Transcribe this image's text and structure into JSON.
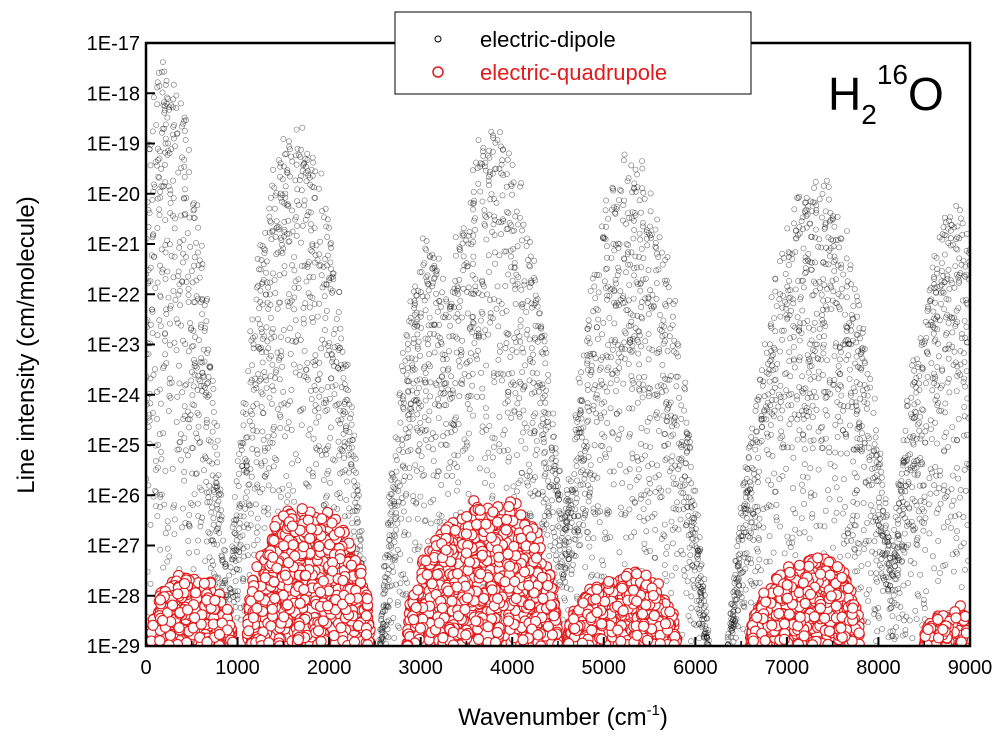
{
  "chart_data": {
    "type": "scatter",
    "title": "",
    "molecule_label": {
      "main": "H",
      "sub": "2",
      "sup": "16",
      "tail": "O"
    },
    "xlabel": {
      "text": "Wavenumber (cm",
      "sup": "-1",
      "close": ")"
    },
    "ylabel": "Line intensity (cm/molecule)",
    "xlim": [
      0,
      9000
    ],
    "ylim": [
      1e-29,
      1e-17
    ],
    "yscale": "log",
    "grid": false,
    "legend_position": "top-center",
    "x_ticks": [
      "0",
      "1000",
      "2000",
      "3000",
      "4000",
      "5000",
      "6000",
      "7000",
      "8000",
      "9000"
    ],
    "y_ticks": [
      "1E-29",
      "1E-28",
      "1E-27",
      "1E-26",
      "1E-25",
      "1E-24",
      "1E-23",
      "1E-22",
      "1E-21",
      "1E-20",
      "1E-19",
      "1E-18",
      "1E-17"
    ],
    "series": [
      {
        "name": "electric-dipole",
        "color": "#000000",
        "marker": "open-circle-small",
        "bands": [
          {
            "center": 200,
            "width": 330,
            "peak_log": -17.6
          },
          {
            "center": 1650,
            "width": 380,
            "peak_log": -18.6
          },
          {
            "center": 3100,
            "width": 300,
            "peak_log": -21.1
          },
          {
            "center": 3800,
            "width": 420,
            "peak_log": -18.7
          },
          {
            "center": 5300,
            "width": 420,
            "peak_log": -19.3
          },
          {
            "center": 7300,
            "width": 480,
            "peak_log": -19.8
          },
          {
            "center": 8850,
            "width": 420,
            "peak_log": -20.5
          }
        ]
      },
      {
        "name": "electric-quadrupole",
        "color": "#e31a1c",
        "marker": "open-circle-large",
        "bands": [
          {
            "x_range": [
              50,
              950
            ],
            "center": 450,
            "peak_log": -27.6
          },
          {
            "x_range": [
              1100,
              2450
            ],
            "center": 1750,
            "peak_log": -26.2
          },
          {
            "x_range": [
              2850,
              4500
            ],
            "center": 3850,
            "peak_log": -26.1
          },
          {
            "x_range": [
              4600,
              5800
            ],
            "center": 5300,
            "peak_log": -27.6
          },
          {
            "x_range": [
              6600,
              7800
            ],
            "center": 7400,
            "peak_log": -27.3
          },
          {
            "x_range": [
              8500,
              9000
            ],
            "center": 8900,
            "peak_log": -28.3
          }
        ]
      }
    ]
  }
}
